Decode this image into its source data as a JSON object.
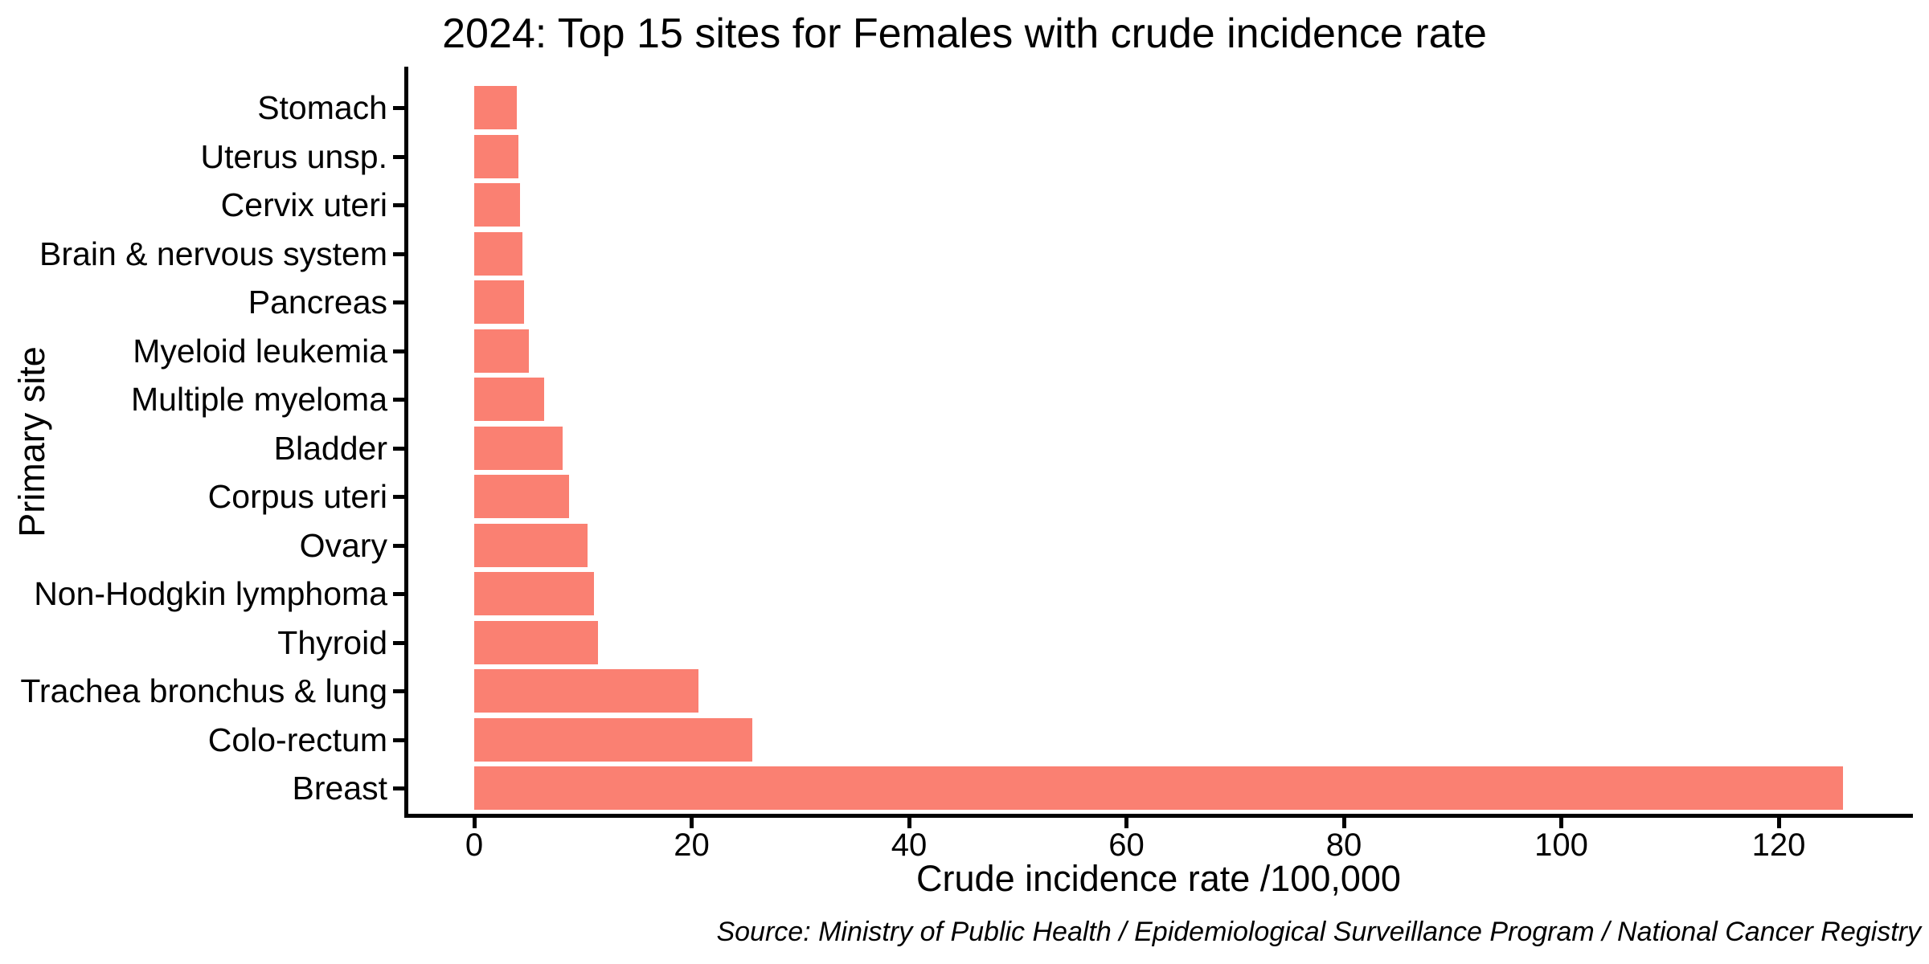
{
  "chart_data": {
    "type": "bar",
    "orientation": "horizontal",
    "title": "2024: Top 15 sites for Females with crude incidence rate",
    "xlabel": "Crude incidence rate /100,000",
    "ylabel": "Primary site",
    "source": "Source: Ministry of Public Health / Epidemiological Surveillance Program / National Cancer Registry",
    "bar_color": "#FA8072",
    "axis_color": "#000000",
    "xlim": [
      0,
      132
    ],
    "xticks": [
      0,
      20,
      40,
      60,
      80,
      100,
      120
    ],
    "grid": false,
    "legend": "none",
    "categories_top_to_bottom": [
      "Stomach",
      "Uterus unsp.",
      "Cervix uteri",
      "Brain & nervous system",
      "Pancreas",
      "Myeloid leukemia",
      "Multiple myeloma",
      "Bladder",
      "Corpus uteri",
      "Ovary",
      "Non-Hodgkin lymphoma",
      "Thyroid",
      "Trachea bronchus & lung",
      "Colo-rectum",
      "Breast"
    ],
    "values": [
      3.9,
      4.1,
      4.2,
      4.4,
      4.6,
      5.0,
      6.4,
      8.1,
      8.7,
      10.4,
      11.0,
      11.4,
      20.6,
      25.6,
      125.9
    ]
  }
}
